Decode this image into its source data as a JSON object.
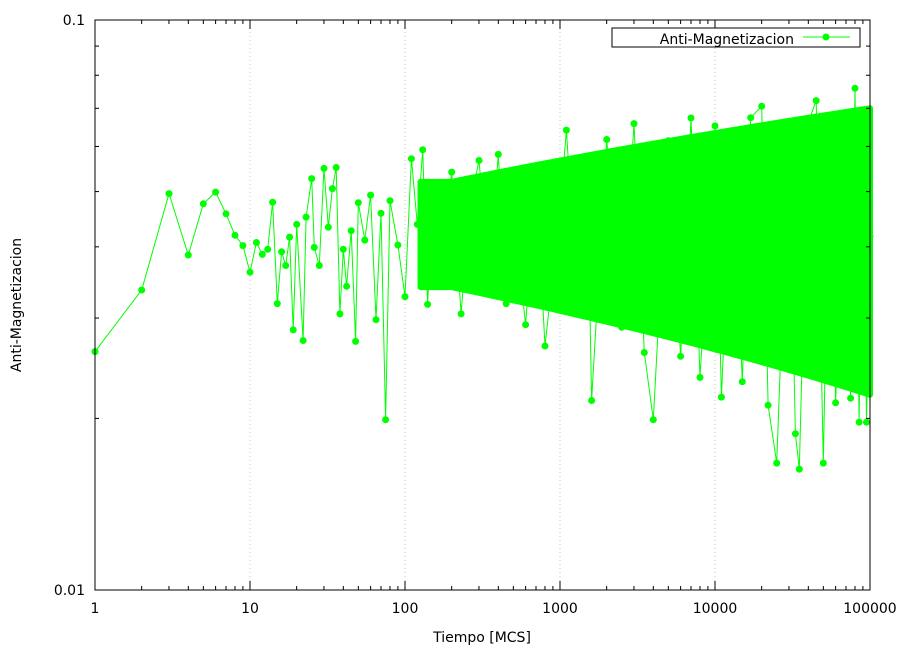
{
  "chart_data": {
    "type": "scatter",
    "xlabel": "Tiempo [MCS]",
    "ylabel": "Anti-Magnetizacion",
    "xscale": "log",
    "yscale": "log",
    "xlim": [
      1,
      100000
    ],
    "ylim": [
      0.01,
      0.1
    ],
    "x_ticks": [
      "1",
      "10",
      "100",
      "1000",
      "10000",
      "100000"
    ],
    "y_ticks": [
      "0.01",
      "0.1"
    ],
    "grid": "vertical dotted lines at major x ticks",
    "legend": {
      "position": "top-right",
      "entries": [
        "Anti-Magnetizacion"
      ]
    },
    "series": [
      {
        "name": "Anti-Magnetizacion",
        "color": "#00ff00",
        "style": "line with filled circle markers",
        "points": [
          [
            1,
            0.0262
          ],
          [
            2,
            0.0336
          ],
          [
            3,
            0.0496
          ],
          [
            4,
            0.0387
          ],
          [
            5,
            0.0476
          ],
          [
            6,
            0.0499
          ],
          [
            7,
            0.0457
          ],
          [
            8,
            0.0419
          ],
          [
            9,
            0.0402
          ],
          [
            10,
            0.0361
          ],
          [
            11,
            0.0407
          ],
          [
            12,
            0.0388
          ],
          [
            13,
            0.0396
          ],
          [
            14,
            0.0479
          ],
          [
            15,
            0.0318
          ],
          [
            16,
            0.0392
          ],
          [
            17,
            0.0371
          ],
          [
            18,
            0.0416
          ],
          [
            19,
            0.0286
          ],
          [
            20,
            0.0438
          ],
          [
            22,
            0.0274
          ],
          [
            23,
            0.0451
          ],
          [
            25,
            0.0527
          ],
          [
            26,
            0.0399
          ],
          [
            28,
            0.0371
          ],
          [
            30,
            0.0549
          ],
          [
            32,
            0.0433
          ],
          [
            34,
            0.0506
          ],
          [
            36,
            0.0551
          ],
          [
            38,
            0.0305
          ],
          [
            40,
            0.0396
          ],
          [
            42,
            0.0341
          ],
          [
            45,
            0.0427
          ],
          [
            48,
            0.0273
          ],
          [
            50,
            0.0478
          ],
          [
            55,
            0.0411
          ],
          [
            60,
            0.0493
          ],
          [
            65,
            0.0298
          ],
          [
            70,
            0.0458
          ],
          [
            75,
            0.0199
          ],
          [
            80,
            0.0482
          ],
          [
            90,
            0.0403
          ],
          [
            100,
            0.0327
          ],
          [
            110,
            0.0571
          ],
          [
            120,
            0.0438
          ],
          [
            130,
            0.0592
          ],
          [
            140,
            0.0317
          ],
          [
            150,
            0.0478
          ],
          [
            170,
            0.0381
          ],
          [
            200,
            0.0541
          ],
          [
            230,
            0.0305
          ],
          [
            260,
            0.0468
          ],
          [
            300,
            0.0567
          ],
          [
            350,
            0.0352
          ],
          [
            400,
            0.0581
          ],
          [
            450,
            0.0318
          ],
          [
            500,
            0.0464
          ],
          [
            600,
            0.0292
          ],
          [
            700,
            0.0527
          ],
          [
            800,
            0.0268
          ],
          [
            1000,
            0.0466
          ],
          [
            1100,
            0.0641
          ],
          [
            1300,
            0.0311
          ],
          [
            1500,
            0.0548
          ],
          [
            1600,
            0.0215
          ],
          [
            2000,
            0.0617
          ],
          [
            2500,
            0.0289
          ],
          [
            3000,
            0.0658
          ],
          [
            3500,
            0.0261
          ],
          [
            4000,
            0.0199
          ],
          [
            5000,
            0.0614
          ],
          [
            6000,
            0.0257
          ],
          [
            7000,
            0.0673
          ],
          [
            8000,
            0.0236
          ],
          [
            10000,
            0.0652
          ],
          [
            11000,
            0.0218
          ],
          [
            13000,
            0.0623
          ],
          [
            15000,
            0.0232
          ],
          [
            17000,
            0.0674
          ],
          [
            20000,
            0.0706
          ],
          [
            22000,
            0.0211
          ],
          [
            25000,
            0.0167
          ],
          [
            30000,
            0.0638
          ],
          [
            33000,
            0.0188
          ],
          [
            35000,
            0.0163
          ],
          [
            40000,
            0.0661
          ],
          [
            45000,
            0.0722
          ],
          [
            50000,
            0.0167
          ],
          [
            55000,
            0.0674
          ],
          [
            60000,
            0.0213
          ],
          [
            70000,
            0.0648
          ],
          [
            75000,
            0.0217
          ],
          [
            80000,
            0.0759
          ],
          [
            85000,
            0.0197
          ],
          [
            90000,
            0.069
          ],
          [
            95000,
            0.0197
          ],
          [
            100000,
            0.0417
          ]
        ]
      }
    ]
  }
}
